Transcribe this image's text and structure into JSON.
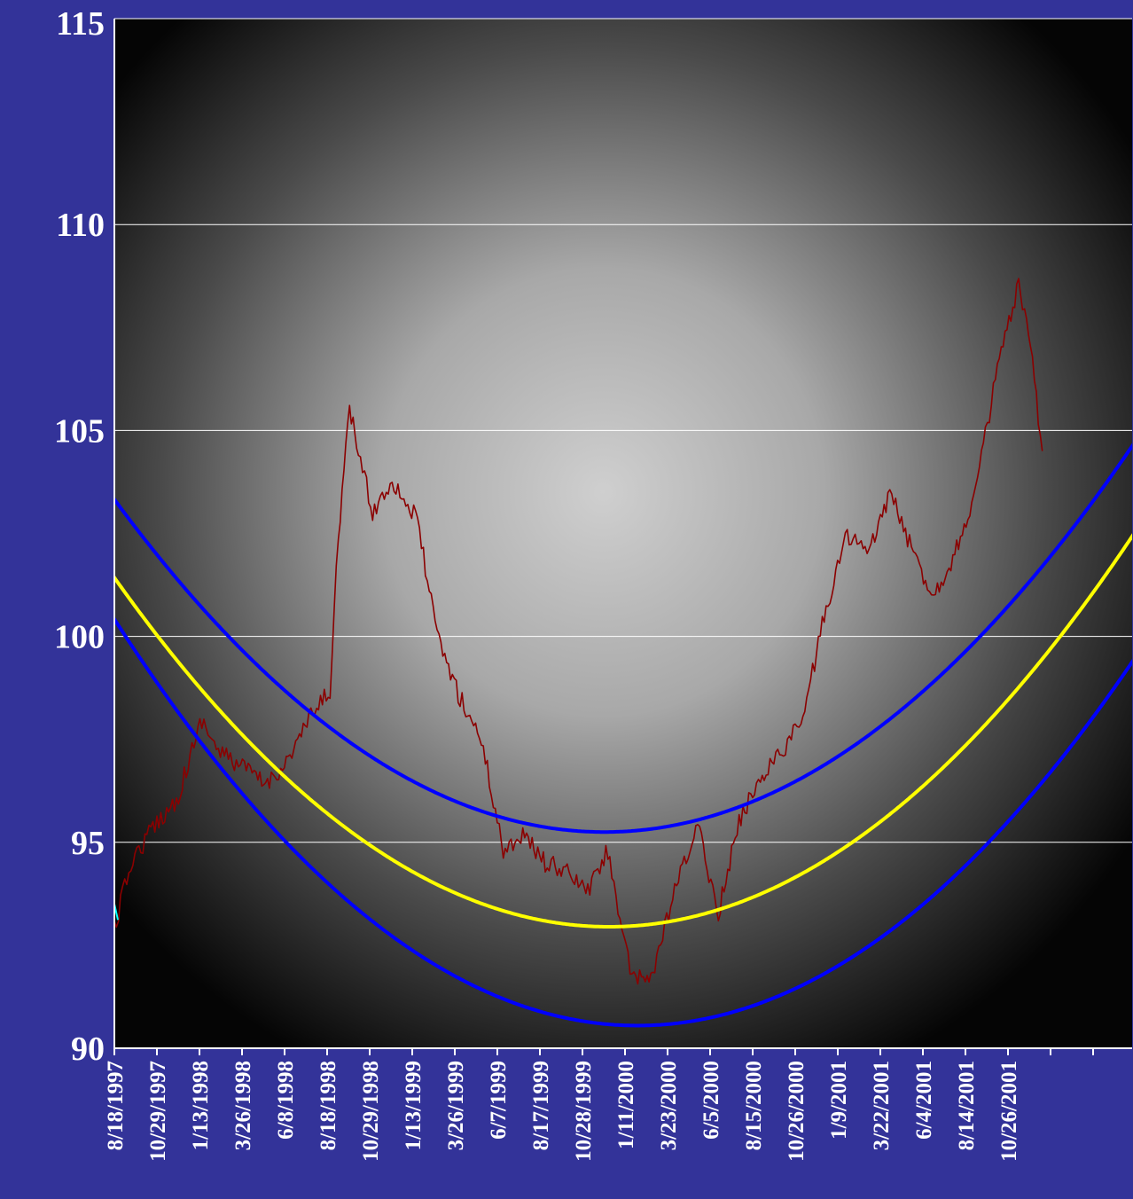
{
  "chart_data": {
    "type": "line",
    "title": "",
    "xlabel": "",
    "ylabel": "",
    "ylim": [
      90,
      115
    ],
    "yticks": [
      90,
      95,
      100,
      105,
      110,
      115
    ],
    "grid": true,
    "legend": "none",
    "colors": {
      "background": "#333399",
      "price": "#8b0000",
      "center_band": "#ffff00",
      "outer_bands": "#0000ff",
      "gridline": "#ffffff",
      "start_marker": "#00ffff"
    },
    "x_tick_labels": [
      "8/18/1997",
      "10/29/1997",
      "1/13/1998",
      "3/26/1998",
      "6/8/1998",
      "8/18/1998",
      "10/29/1998",
      "1/13/1999",
      "3/26/1999",
      "6/7/1999",
      "8/17/1999",
      "10/28/1999",
      "1/11/2000",
      "3/23/2000",
      "6/5/2000",
      "8/15/2000",
      "10/26/2000",
      "1/9/2001",
      "3/22/2001",
      "6/4/2001",
      "8/14/2001",
      "10/26/2001",
      "",
      ""
    ],
    "price_series": {
      "x": [
        "8/18/1997",
        "9/15/1997",
        "10/29/1997",
        "12/1/1997",
        "1/13/1998",
        "2/10/1998",
        "3/26/1998",
        "5/1/1998",
        "6/8/1998",
        "7/10/1998",
        "8/18/1998",
        "9/1/1998",
        "9/20/1998",
        "10/5/1998",
        "10/29/1998",
        "12/1/1998",
        "1/13/1999",
        "2/15/1999",
        "3/26/1999",
        "5/1/1999",
        "6/7/1999",
        "7/10/1999",
        "8/17/1999",
        "9/20/1999",
        "10/28/1999",
        "12/1/1999",
        "1/11/2000",
        "2/15/2000",
        "3/23/2000",
        "5/1/2000",
        "6/5/2000",
        "7/10/2000",
        "8/15/2000",
        "9/20/2000",
        "10/26/2000",
        "12/1/2000",
        "1/9/2001",
        "2/15/2001",
        "3/22/2001",
        "5/1/2001",
        "6/4/2001",
        "7/10/2001",
        "8/14/2001",
        "9/20/2001",
        "10/26/2001",
        "11/15/2001",
        "12/5/2001"
      ],
      "values": [
        92.9,
        94.5,
        95.5,
        96.0,
        98.0,
        97.2,
        96.8,
        96.4,
        97.0,
        97.9,
        98.7,
        102.5,
        105.5,
        104.5,
        103.0,
        103.8,
        102.8,
        100.0,
        98.5,
        97.5,
        94.8,
        95.2,
        94.5,
        94.3,
        93.8,
        94.8,
        91.6,
        91.8,
        93.8,
        95.4,
        93.3,
        95.5,
        96.6,
        97.2,
        98.0,
        100.5,
        102.5,
        102.0,
        103.5,
        102.0,
        101.0,
        102.0,
        103.5,
        106.5,
        108.5,
        107.0,
        104.5
      ]
    },
    "parabola_bands": [
      {
        "vertex": [
          "11/25/1999",
          95.25
        ],
        "k": 1.175e-05
      },
      {
        "vertex": [
          "12/3/1999",
          92.95
        ],
        "k": 1.21e-05
      },
      {
        "vertex": [
          "1/20/2000",
          90.55
        ],
        "k": 1.26e-05
      }
    ]
  }
}
